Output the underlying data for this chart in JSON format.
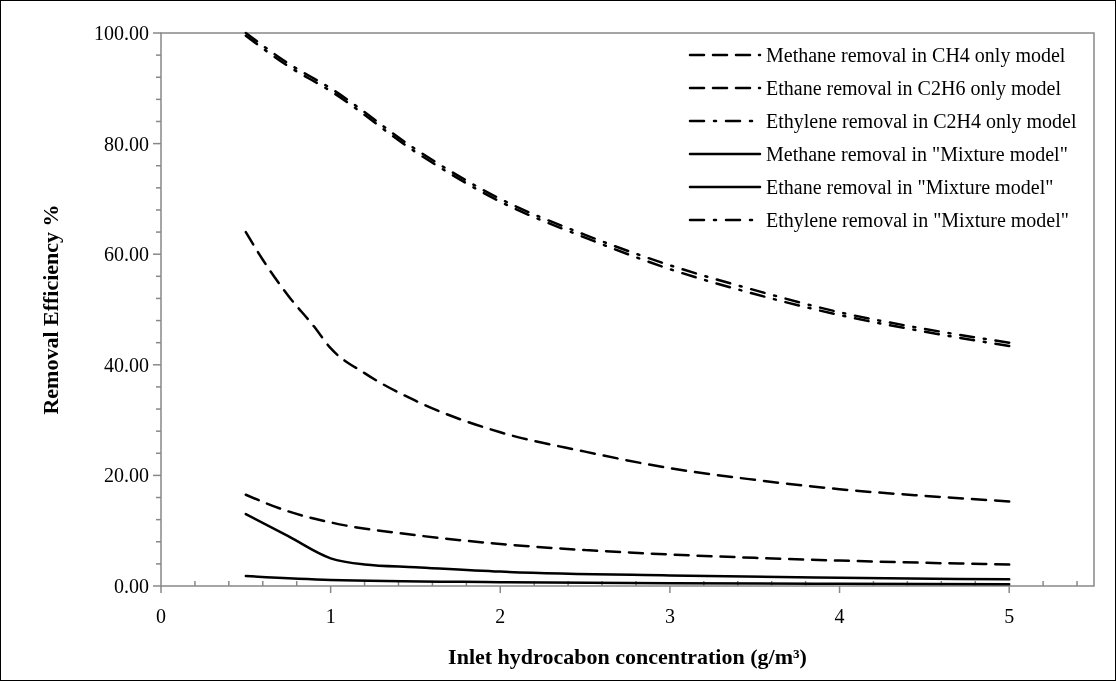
{
  "chart_data": {
    "type": "line",
    "xlabel": "Inlet hydrocabon concentration (g/m³)",
    "ylabel": "Removal Efficiency %",
    "xlim": [
      0,
      5.5
    ],
    "xticks": [
      0,
      {
        "value": 0.2,
        "label": null
      },
      {
        "value": 0.4,
        "label": null
      },
      {
        "value": 0.6,
        "label": null
      },
      {
        "value": 0.8,
        "label": null
      },
      1,
      {
        "value": 1.2,
        "label": null
      },
      {
        "value": 1.4,
        "label": null
      },
      {
        "value": 1.6,
        "label": null
      },
      {
        "value": 1.8,
        "label": null
      },
      2,
      {
        "value": 2.2,
        "label": null
      },
      {
        "value": 2.4,
        "label": null
      },
      {
        "value": 2.6,
        "label": null
      },
      {
        "value": 2.8,
        "label": null
      },
      3,
      {
        "value": 3.2,
        "label": null
      },
      {
        "value": 3.4,
        "label": null
      },
      {
        "value": 3.6,
        "label": null
      },
      {
        "value": 3.8,
        "label": null
      },
      4,
      {
        "value": 4.2,
        "label": null
      },
      {
        "value": 4.4,
        "label": null
      },
      {
        "value": 4.6,
        "label": null
      },
      {
        "value": 4.8,
        "label": null
      },
      5,
      {
        "value": 5.2,
        "label": null
      },
      {
        "value": 5.4,
        "label": null
      }
    ],
    "ylim": [
      0,
      100
    ],
    "yticks": [
      {
        "value": 0,
        "label": "0.00"
      },
      {
        "value": 4,
        "label": null
      },
      {
        "value": 8,
        "label": null
      },
      {
        "value": 12,
        "label": null
      },
      {
        "value": 16,
        "label": null
      },
      {
        "value": 20,
        "label": "20.00"
      },
      {
        "value": 24,
        "label": null
      },
      {
        "value": 28,
        "label": null
      },
      {
        "value": 32,
        "label": null
      },
      {
        "value": 36,
        "label": null
      },
      {
        "value": 40,
        "label": "40.00"
      },
      {
        "value": 44,
        "label": null
      },
      {
        "value": 48,
        "label": null
      },
      {
        "value": 52,
        "label": null
      },
      {
        "value": 56,
        "label": null
      },
      {
        "value": 60,
        "label": "60.00"
      },
      {
        "value": 64,
        "label": null
      },
      {
        "value": 68,
        "label": null
      },
      {
        "value": 72,
        "label": null
      },
      {
        "value": 76,
        "label": null
      },
      {
        "value": 80,
        "label": "80.00"
      },
      {
        "value": 84,
        "label": null
      },
      {
        "value": 88,
        "label": null
      },
      {
        "value": 92,
        "label": null
      },
      {
        "value": 96,
        "label": null
      },
      {
        "value": 100,
        "label": "100.00"
      }
    ],
    "grid": false,
    "legend": "top right",
    "marker": "none",
    "series": [
      {
        "name": "Methane removal in CH4 only model",
        "color": "#000000",
        "line_style": "dashed",
        "x": [
          0.5,
          0.75,
          1,
          1.5,
          2,
          2.5,
          3,
          3.5,
          4,
          4.5,
          5
        ],
        "values": [
          16.5,
          13.5,
          11.5,
          9.2,
          7.6,
          6.5,
          5.7,
          5.1,
          4.6,
          4.2,
          3.9
        ]
      },
      {
        "name": "Ethane removal in C2H6 only model",
        "color": "#000000",
        "line_style": "dashed",
        "x": [
          0.5,
          0.6,
          0.75,
          0.9,
          1,
          1.2,
          1.5,
          2,
          2.5,
          3,
          3.5,
          4,
          4.5,
          5
        ],
        "values": [
          64,
          59,
          52.5,
          47,
          43,
          38.5,
          33.5,
          27.8,
          24.3,
          21.3,
          19.2,
          17.5,
          16.3,
          15.3
        ]
      },
      {
        "name": "Ethylene removal in C2H4 only model",
        "color": "#000000",
        "line_style": "dashdot",
        "x": [
          0.5,
          0.75,
          1,
          1.5,
          2,
          2.5,
          3,
          3.5,
          4,
          4.5,
          5
        ],
        "values": [
          100,
          94.5,
          90,
          79,
          70,
          63.5,
          58,
          53.5,
          49.5,
          46.5,
          44
        ]
      },
      {
        "name": "Methane removal in \"Mixture model\"",
        "color": "#000000",
        "line_style": "solid",
        "x": [
          0.5,
          1,
          2,
          3,
          4,
          5
        ],
        "values": [
          1.8,
          1.1,
          0.7,
          0.5,
          0.4,
          0.3
        ]
      },
      {
        "name": "Ethane removal in \"Mixture model\"",
        "color": "#000000",
        "line_style": "solid",
        "x": [
          0.5,
          0.75,
          1,
          1.2,
          1.5,
          2,
          3,
          4,
          5
        ],
        "values": [
          13,
          9,
          5,
          3.9,
          3.4,
          2.6,
          1.9,
          1.5,
          1.2
        ]
      },
      {
        "name": "Ethylene removal in \"Mixture model\"",
        "color": "#000000",
        "line_style": "dashdot",
        "x": [
          0.5,
          0.75,
          1,
          1.5,
          2,
          2.5,
          3,
          3.5,
          4,
          4.5,
          5
        ],
        "values": [
          99.5,
          94,
          89.5,
          78.5,
          69.5,
          63,
          57.3,
          52.8,
          49,
          46,
          43.4
        ]
      }
    ]
  }
}
